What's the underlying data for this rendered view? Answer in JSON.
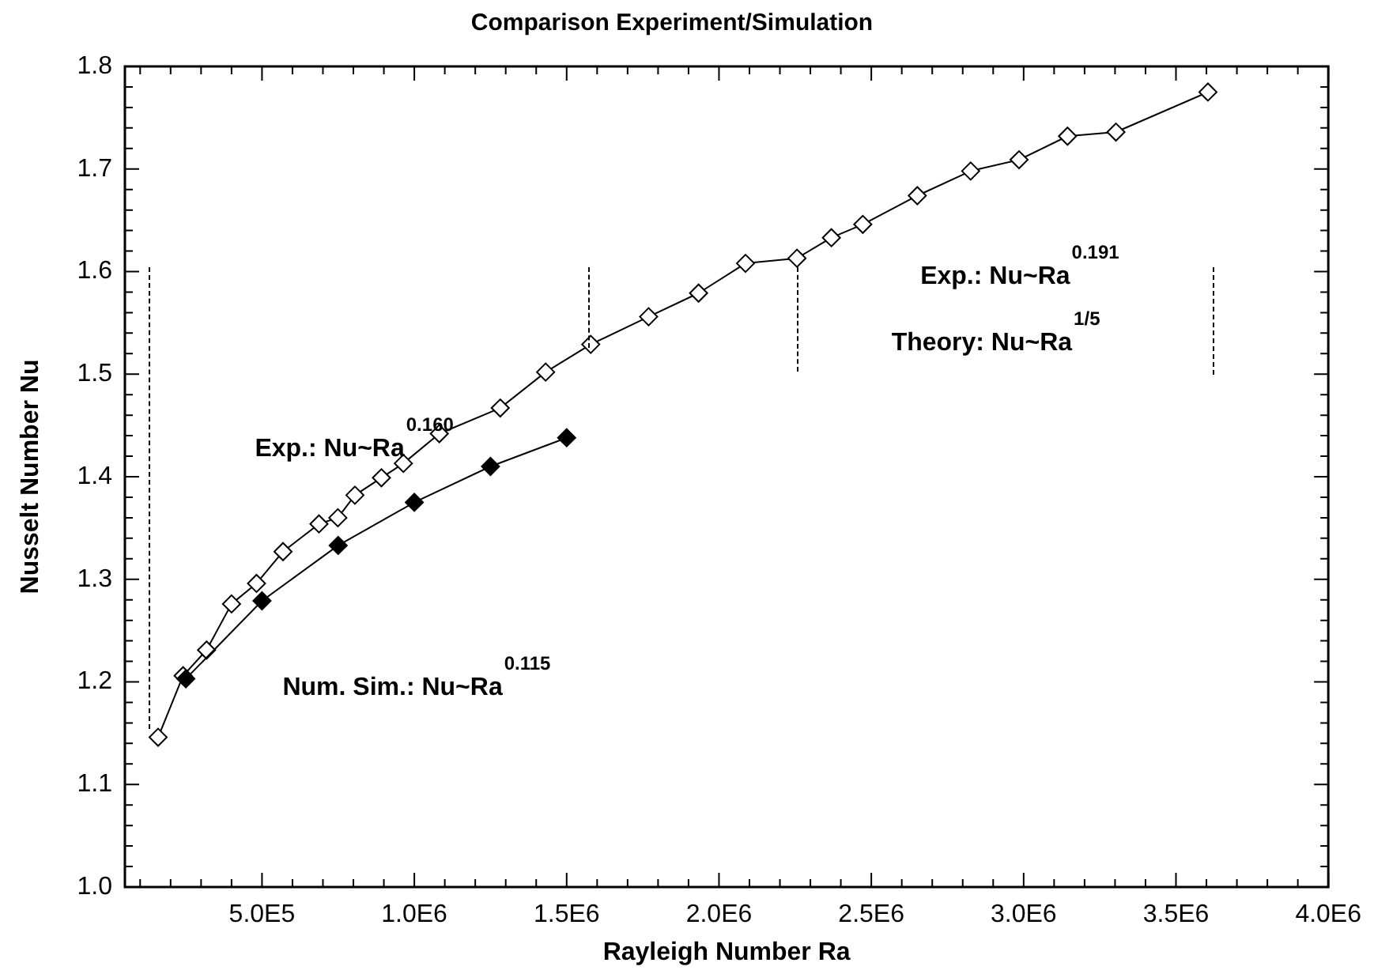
{
  "chart_data": {
    "type": "line",
    "title": "Comparison Experiment/Simulation",
    "xlabel": "Rayleigh Number Ra",
    "ylabel": "Nusselt Number Nu",
    "xlim": [
      50000,
      4000000
    ],
    "ylim": [
      1.0,
      1.8
    ],
    "xticks": [
      {
        "value": 100000,
        "label": null
      },
      {
        "value": 200000,
        "label": null
      },
      {
        "value": 300000,
        "label": null
      },
      {
        "value": 400000,
        "label": null
      },
      {
        "value": 500000,
        "label": "5.0E5"
      },
      {
        "value": 600000,
        "label": null
      },
      {
        "value": 700000,
        "label": null
      },
      {
        "value": 800000,
        "label": null
      },
      {
        "value": 900000,
        "label": null
      },
      {
        "value": 1000000,
        "label": "1.0E6"
      },
      {
        "value": 1100000,
        "label": null
      },
      {
        "value": 1200000,
        "label": null
      },
      {
        "value": 1300000,
        "label": null
      },
      {
        "value": 1400000,
        "label": null
      },
      {
        "value": 1500000,
        "label": "1.5E6"
      },
      {
        "value": 1600000,
        "label": null
      },
      {
        "value": 1700000,
        "label": null
      },
      {
        "value": 1800000,
        "label": null
      },
      {
        "value": 1900000,
        "label": null
      },
      {
        "value": 2000000,
        "label": "2.0E6"
      },
      {
        "value": 2100000,
        "label": null
      },
      {
        "value": 2200000,
        "label": null
      },
      {
        "value": 2300000,
        "label": null
      },
      {
        "value": 2400000,
        "label": null
      },
      {
        "value": 2500000,
        "label": "2.5E6"
      },
      {
        "value": 2600000,
        "label": null
      },
      {
        "value": 2700000,
        "label": null
      },
      {
        "value": 2800000,
        "label": null
      },
      {
        "value": 2900000,
        "label": null
      },
      {
        "value": 3000000,
        "label": "3.0E6"
      },
      {
        "value": 3100000,
        "label": null
      },
      {
        "value": 3200000,
        "label": null
      },
      {
        "value": 3300000,
        "label": null
      },
      {
        "value": 3400000,
        "label": null
      },
      {
        "value": 3500000,
        "label": "3.5E6"
      },
      {
        "value": 3600000,
        "label": null
      },
      {
        "value": 3700000,
        "label": null
      },
      {
        "value": 3800000,
        "label": null
      },
      {
        "value": 3900000,
        "label": null
      },
      {
        "value": 4000000,
        "label": "4.0E6"
      }
    ],
    "yticks": [
      {
        "value": 1.0,
        "label": "1.0"
      },
      {
        "value": 1.02,
        "label": null
      },
      {
        "value": 1.04,
        "label": null
      },
      {
        "value": 1.06,
        "label": null
      },
      {
        "value": 1.08,
        "label": null
      },
      {
        "value": 1.1,
        "label": "1.1"
      },
      {
        "value": 1.12,
        "label": null
      },
      {
        "value": 1.14,
        "label": null
      },
      {
        "value": 1.16,
        "label": null
      },
      {
        "value": 1.18,
        "label": null
      },
      {
        "value": 1.2,
        "label": "1.2"
      },
      {
        "value": 1.22,
        "label": null
      },
      {
        "value": 1.24,
        "label": null
      },
      {
        "value": 1.26,
        "label": null
      },
      {
        "value": 1.28,
        "label": null
      },
      {
        "value": 1.3,
        "label": "1.3"
      },
      {
        "value": 1.32,
        "label": null
      },
      {
        "value": 1.34,
        "label": null
      },
      {
        "value": 1.36,
        "label": null
      },
      {
        "value": 1.38,
        "label": null
      },
      {
        "value": 1.4,
        "label": "1.4"
      },
      {
        "value": 1.42,
        "label": null
      },
      {
        "value": 1.44,
        "label": null
      },
      {
        "value": 1.46,
        "label": null
      },
      {
        "value": 1.48,
        "label": null
      },
      {
        "value": 1.5,
        "label": "1.5"
      },
      {
        "value": 1.52,
        "label": null
      },
      {
        "value": 1.54,
        "label": null
      },
      {
        "value": 1.56,
        "label": null
      },
      {
        "value": 1.58,
        "label": null
      },
      {
        "value": 1.6,
        "label": "1.6"
      },
      {
        "value": 1.62,
        "label": null
      },
      {
        "value": 1.64,
        "label": null
      },
      {
        "value": 1.66,
        "label": null
      },
      {
        "value": 1.68,
        "label": null
      },
      {
        "value": 1.7,
        "label": "1.7"
      },
      {
        "value": 1.72,
        "label": null
      },
      {
        "value": 1.74,
        "label": null
      },
      {
        "value": 1.76,
        "label": null
      },
      {
        "value": 1.78,
        "label": null
      },
      {
        "value": 1.8,
        "label": "1.8"
      }
    ],
    "series": [
      {
        "color": "#ffffff",
        "marker": "diamond",
        "line_style": "solid",
        "x": [
          159000,
          241000,
          318000,
          400000,
          482000,
          569000,
          687000,
          749000,
          805000,
          892000,
          964000,
          1082000,
          1282000,
          1431000,
          1579000,
          1769000,
          1933000,
          2087000,
          2256000,
          2369000,
          2472000,
          2651000,
          2826000,
          2985000,
          3144000,
          3303000,
          3605000
        ],
        "values": [
          1.146,
          1.206,
          1.231,
          1.276,
          1.296,
          1.327,
          1.354,
          1.36,
          1.382,
          1.399,
          1.413,
          1.442,
          1.467,
          1.502,
          1.529,
          1.556,
          1.579,
          1.608,
          1.613,
          1.633,
          1.646,
          1.674,
          1.698,
          1.709,
          1.732,
          1.736,
          1.775
        ]
      },
      {
        "color": "#000000",
        "marker": "diamond",
        "line_style": "solid",
        "x": [
          250000,
          500000,
          750000,
          1000000,
          1250000,
          1500000
        ],
        "values": [
          1.203,
          1.279,
          1.333,
          1.375,
          1.41,
          1.438
        ]
      }
    ],
    "annotations": [
      "Exp.: Nu~Ra$^{0.160}$",
      "Num. Sim.: Nu~Ra$^{0.115}$",
      "Exp.: Nu~Ra$^{0.191}$",
      "Theory: Nu~Ra$^{1/5}$"
    ]
  }
}
